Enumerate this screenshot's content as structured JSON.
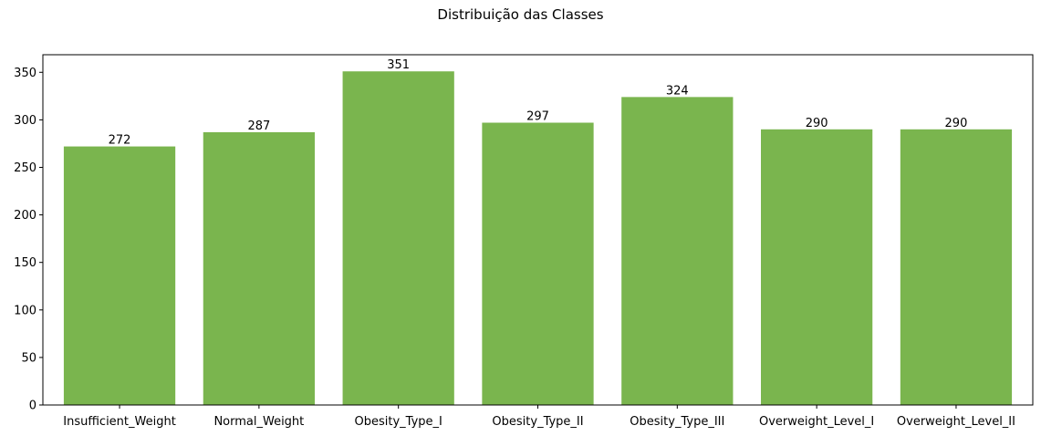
{
  "chart_data": {
    "type": "bar",
    "title": "Distribuição das Classes",
    "xlabel": "",
    "ylabel": "",
    "categories": [
      "Insufficient_Weight",
      "Normal_Weight",
      "Obesity_Type_I",
      "Obesity_Type_II",
      "Obesity_Type_III",
      "Overweight_Level_I",
      "Overweight_Level_II"
    ],
    "values": [
      272,
      287,
      351,
      297,
      324,
      290,
      290
    ],
    "ylim": [
      0,
      368.5
    ],
    "yticks": [
      0,
      50,
      100,
      150,
      200,
      250,
      300,
      350
    ],
    "bar_color": "#7ab54e",
    "grid": false,
    "legend": "none"
  }
}
